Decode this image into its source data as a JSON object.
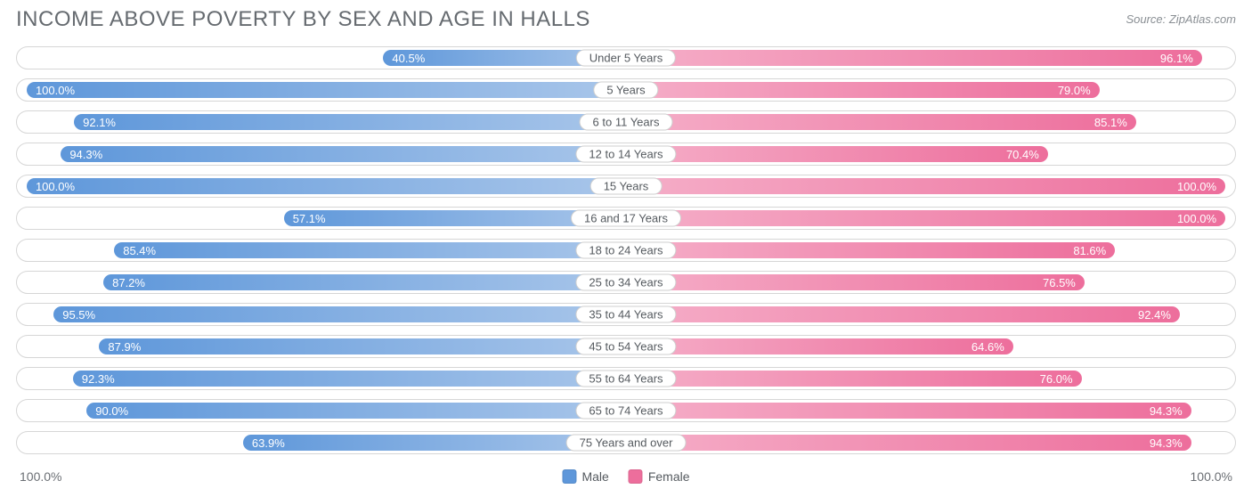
{
  "title": "INCOME ABOVE POVERTY BY SEX AND AGE IN HALLS",
  "source": "Source: ZipAtlas.com",
  "chart": {
    "type": "diverging-bar",
    "background_color": "#ffffff",
    "row_border_color": "#d6d6d6",
    "male": {
      "fill": "#5e97da",
      "light": "#a9c6ea",
      "label": "Male"
    },
    "female": {
      "fill": "#ed6e9c",
      "light": "#f5aec8",
      "label": "Female"
    },
    "axis_left": "100.0%",
    "axis_right": "100.0%",
    "rows": [
      {
        "category": "Under 5 Years",
        "male": 40.5,
        "female": 96.1
      },
      {
        "category": "5 Years",
        "male": 100.0,
        "female": 79.0
      },
      {
        "category": "6 to 11 Years",
        "male": 92.1,
        "female": 85.1
      },
      {
        "category": "12 to 14 Years",
        "male": 94.3,
        "female": 70.4
      },
      {
        "category": "15 Years",
        "male": 100.0,
        "female": 100.0
      },
      {
        "category": "16 and 17 Years",
        "male": 57.1,
        "female": 100.0
      },
      {
        "category": "18 to 24 Years",
        "male": 85.4,
        "female": 81.6
      },
      {
        "category": "25 to 34 Years",
        "male": 87.2,
        "female": 76.5
      },
      {
        "category": "35 to 44 Years",
        "male": 95.5,
        "female": 92.4
      },
      {
        "category": "45 to 54 Years",
        "male": 87.9,
        "female": 64.6
      },
      {
        "category": "55 to 64 Years",
        "male": 92.3,
        "female": 76.0
      },
      {
        "category": "65 to 74 Years",
        "male": 90.0,
        "female": 94.3
      },
      {
        "category": "75 Years and over",
        "male": 63.9,
        "female": 94.3
      }
    ],
    "half_width_pct": 49.2,
    "label_fontsize": 13,
    "title_fontsize": 24,
    "title_color": "#666b70"
  }
}
